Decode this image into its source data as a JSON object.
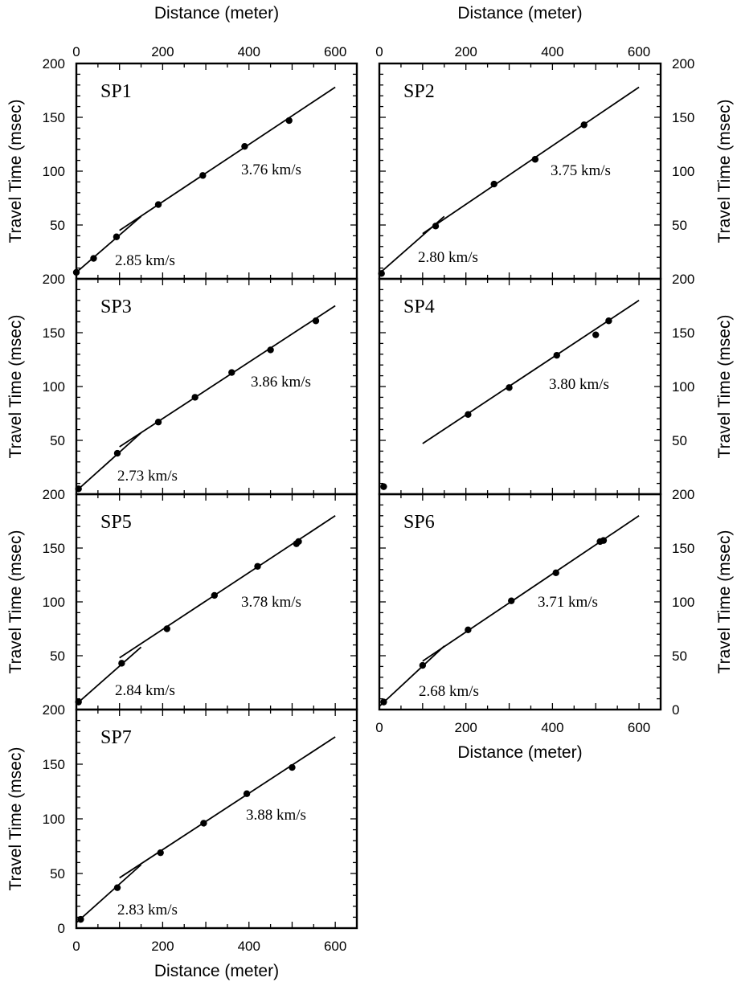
{
  "chart_data": [
    {
      "type": "scatter",
      "title": "SP1",
      "xlabel": "Distance (meter)",
      "ylabel": "Travel Time (msec)",
      "xlim": [
        0,
        650
      ],
      "ylim": [
        0,
        200
      ],
      "xticks": [
        0,
        200,
        400,
        600
      ],
      "yticks": [
        50,
        100,
        150,
        200
      ],
      "grid": false,
      "points": [
        [
          0,
          6
        ],
        [
          40,
          19
        ],
        [
          93,
          39
        ],
        [
          190,
          69
        ],
        [
          293,
          96
        ],
        [
          390,
          123
        ],
        [
          493,
          147
        ]
      ],
      "fit_lines": [
        {
          "label": "2.85 km/s",
          "x": [
            0,
            150
          ],
          "y": [
            6,
            58
          ]
        },
        {
          "label": "3.76 km/s",
          "x": [
            100,
            600
          ],
          "y": [
            45,
            178
          ]
        }
      ],
      "annotations": [
        "2.85 km/s",
        "3.76 km/s"
      ]
    },
    {
      "type": "scatter",
      "title": "SP2",
      "xlabel": "Distance (meter)",
      "ylabel": "Travel Time (msec)",
      "xlim": [
        0,
        650
      ],
      "ylim": [
        0,
        200
      ],
      "xticks": [
        0,
        200,
        400,
        600
      ],
      "yticks": [
        50,
        100,
        150,
        200
      ],
      "grid": false,
      "points": [
        [
          5,
          5
        ],
        [
          130,
          49
        ],
        [
          265,
          88
        ],
        [
          360,
          111
        ],
        [
          473,
          143
        ]
      ],
      "fit_lines": [
        {
          "label": "2.80 km/s",
          "x": [
            0,
            150
          ],
          "y": [
            5,
            58
          ]
        },
        {
          "label": "3.75 km/s",
          "x": [
            100,
            600
          ],
          "y": [
            42,
            178
          ]
        }
      ],
      "annotations": [
        "2.80 km/s",
        "3.75 km/s"
      ]
    },
    {
      "type": "scatter",
      "title": "SP3",
      "xlabel": "Distance (meter)",
      "ylabel": "Travel Time (msec)",
      "xlim": [
        0,
        650
      ],
      "ylim": [
        0,
        200
      ],
      "xticks": [
        0,
        200,
        400,
        600
      ],
      "yticks": [
        50,
        100,
        150,
        200
      ],
      "grid": false,
      "points": [
        [
          5,
          5
        ],
        [
          95,
          38
        ],
        [
          190,
          67
        ],
        [
          275,
          90
        ],
        [
          360,
          113
        ],
        [
          450,
          134
        ],
        [
          555,
          161
        ]
      ],
      "fit_lines": [
        {
          "label": "2.73 km/s",
          "x": [
            0,
            150
          ],
          "y": [
            3,
            57
          ]
        },
        {
          "label": "3.86 km/s",
          "x": [
            100,
            600
          ],
          "y": [
            44,
            175
          ]
        }
      ],
      "annotations": [
        "2.73 km/s",
        "3.86 km/s"
      ]
    },
    {
      "type": "scatter",
      "title": "SP4",
      "xlabel": "Distance (meter)",
      "ylabel": "Travel Time (msec)",
      "xlim": [
        0,
        650
      ],
      "ylim": [
        0,
        200
      ],
      "xticks": [
        0,
        200,
        400,
        600
      ],
      "yticks": [
        50,
        100,
        150,
        200
      ],
      "grid": false,
      "points": [
        [
          10,
          7
        ],
        [
          205,
          74
        ],
        [
          300,
          99
        ],
        [
          410,
          129
        ],
        [
          500,
          148
        ],
        [
          530,
          161
        ]
      ],
      "fit_lines": [
        {
          "label": "3.80 km/s",
          "x": [
            100,
            600
          ],
          "y": [
            47,
            180
          ]
        }
      ],
      "annotations": [
        "3.80 km/s"
      ]
    },
    {
      "type": "scatter",
      "title": "SP5",
      "xlabel": "Distance (meter)",
      "ylabel": "Travel Time (msec)",
      "xlim": [
        0,
        650
      ],
      "ylim": [
        0,
        200
      ],
      "xticks": [
        0,
        200,
        400,
        600
      ],
      "yticks": [
        50,
        100,
        150,
        200
      ],
      "grid": false,
      "points": [
        [
          5,
          7
        ],
        [
          105,
          43
        ],
        [
          210,
          75
        ],
        [
          320,
          106
        ],
        [
          420,
          133
        ],
        [
          510,
          154
        ],
        [
          515,
          156
        ]
      ],
      "fit_lines": [
        {
          "label": "2.84 km/s",
          "x": [
            0,
            150
          ],
          "y": [
            5,
            58
          ]
        },
        {
          "label": "3.78 km/s",
          "x": [
            100,
            600
          ],
          "y": [
            48,
            180
          ]
        }
      ],
      "annotations": [
        "2.84 km/s",
        "3.78 km/s"
      ]
    },
    {
      "type": "scatter",
      "title": "SP6",
      "xlabel": "Distance (meter)",
      "ylabel": "Travel Time (msec)",
      "xlim": [
        0,
        650
      ],
      "ylim": [
        0,
        200
      ],
      "xticks": [
        0,
        200,
        400,
        600
      ],
      "yticks": [
        0,
        50,
        100,
        150,
        200
      ],
      "grid": false,
      "points": [
        [
          10,
          7
        ],
        [
          100,
          41
        ],
        [
          205,
          74
        ],
        [
          305,
          101
        ],
        [
          408,
          127
        ],
        [
          510,
          156
        ],
        [
          518,
          157
        ]
      ],
      "fit_lines": [
        {
          "label": "2.68 km/s",
          "x": [
            0,
            150
          ],
          "y": [
            3,
            59
          ]
        },
        {
          "label": "3.71 km/s",
          "x": [
            100,
            600
          ],
          "y": [
            45,
            180
          ]
        }
      ],
      "annotations": [
        "2.68 km/s",
        "3.71 km/s"
      ]
    },
    {
      "type": "scatter",
      "title": "SP7",
      "xlabel": "Distance (meter)",
      "ylabel": "Travel Time (msec)",
      "xlim": [
        0,
        650
      ],
      "ylim": [
        0,
        200
      ],
      "xticks": [
        0,
        200,
        400,
        600
      ],
      "yticks": [
        0,
        50,
        100,
        150,
        200
      ],
      "grid": false,
      "points": [
        [
          10,
          8
        ],
        [
          95,
          37
        ],
        [
          195,
          69
        ],
        [
          295,
          96
        ],
        [
          395,
          123
        ],
        [
          500,
          147
        ]
      ],
      "fit_lines": [
        {
          "label": "2.83 km/s",
          "x": [
            0,
            150
          ],
          "y": [
            5,
            58
          ]
        },
        {
          "label": "3.88 km/s",
          "x": [
            100,
            600
          ],
          "y": [
            46,
            175
          ]
        }
      ],
      "annotations": [
        "2.83 km/s",
        "3.88 km/s"
      ]
    }
  ]
}
